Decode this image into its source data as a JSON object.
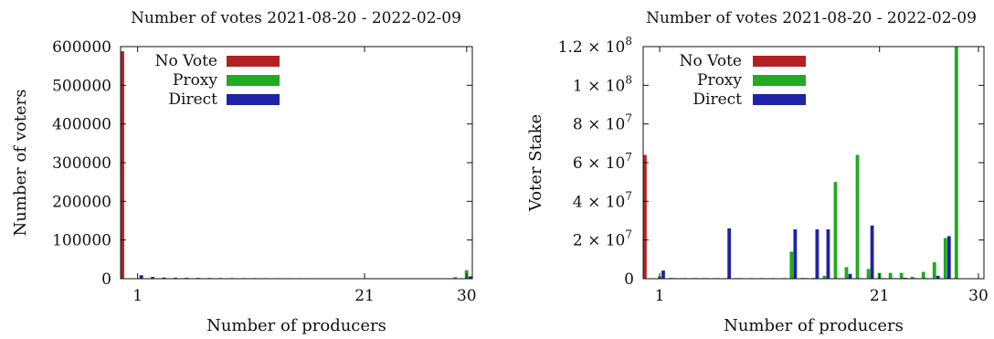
{
  "chart_data": [
    {
      "type": "bar",
      "title": "Number of votes 2021-08-20 - 2022-02-09",
      "xlabel": "Number of producers",
      "ylabel": "Number of voters",
      "xlim": [
        0,
        30
      ],
      "ylim": [
        0,
        600000
      ],
      "x_ticks": [
        1,
        21,
        30
      ],
      "y_ticks": [
        {
          "value": 0,
          "label": "0"
        },
        {
          "value": 100000,
          "label": "100000"
        },
        {
          "value": 200000,
          "label": "200000"
        },
        {
          "value": 300000,
          "label": "300000"
        },
        {
          "value": 400000,
          "label": "400000"
        },
        {
          "value": 500000,
          "label": "500000"
        },
        {
          "value": 600000,
          "label": "600000"
        }
      ],
      "legend_position": "top-left",
      "series": [
        {
          "name": "No Vote",
          "color": "#b22222",
          "points": [
            [
              0,
              588000
            ]
          ]
        },
        {
          "name": "Proxy",
          "color": "#22aa22",
          "points": [
            [
              1,
              600
            ],
            [
              2,
              400
            ],
            [
              29,
              4000
            ],
            [
              30,
              22000
            ]
          ]
        },
        {
          "name": "Direct",
          "color": "#1f23a8",
          "points": [
            [
              1,
              9000
            ],
            [
              2,
              4500
            ],
            [
              3,
              3000
            ],
            [
              4,
              2500
            ],
            [
              5,
              2200
            ],
            [
              6,
              2000
            ],
            [
              7,
              1800
            ],
            [
              8,
              1700
            ],
            [
              9,
              1600
            ],
            [
              10,
              1500
            ],
            [
              11,
              1500
            ],
            [
              12,
              1400
            ],
            [
              13,
              1400
            ],
            [
              14,
              1300
            ],
            [
              15,
              1300
            ],
            [
              16,
              1300
            ],
            [
              17,
              1200
            ],
            [
              18,
              1200
            ],
            [
              19,
              1200
            ],
            [
              20,
              1200
            ],
            [
              21,
              1200
            ],
            [
              22,
              1100
            ],
            [
              23,
              1100
            ],
            [
              24,
              1100
            ],
            [
              25,
              1100
            ],
            [
              26,
              1000
            ],
            [
              27,
              1000
            ],
            [
              28,
              1000
            ],
            [
              29,
              1200
            ],
            [
              30,
              6000
            ]
          ]
        }
      ]
    },
    {
      "type": "bar",
      "title": "Number of votes 2021-08-20 - 2022-02-09",
      "xlabel": "Number of producers",
      "ylabel": "Voter Stake",
      "xlim": [
        0,
        30
      ],
      "ylim": [
        0,
        120000000
      ],
      "x_ticks": [
        1,
        21,
        30
      ],
      "y_ticks": [
        {
          "value": 0,
          "mant": "0",
          "exp": ""
        },
        {
          "value": 20000000,
          "mant": "2 × 10",
          "exp": "7"
        },
        {
          "value": 40000000,
          "mant": "4 × 10",
          "exp": "7"
        },
        {
          "value": 60000000,
          "mant": "6 × 10",
          "exp": "7"
        },
        {
          "value": 80000000,
          "mant": "8 × 10",
          "exp": "7"
        },
        {
          "value": 100000000,
          "mant": "1 × 10",
          "exp": "8"
        },
        {
          "value": 120000000,
          "mant": "1.2 × 10",
          "exp": "8"
        }
      ],
      "legend_position": "top-left",
      "series": [
        {
          "name": "No Vote",
          "color": "#b22222",
          "points": [
            [
              0,
              64000000
            ]
          ]
        },
        {
          "name": "Proxy",
          "color": "#22aa22",
          "points": [
            [
              1,
              1200000
            ],
            [
              2,
              400000
            ],
            [
              3,
              300000
            ],
            [
              4,
              300000
            ],
            [
              5,
              300000
            ],
            [
              6,
              300000
            ],
            [
              7,
              300000
            ],
            [
              8,
              300000
            ],
            [
              13,
              14000000
            ],
            [
              14,
              400000
            ],
            [
              15,
              400000
            ],
            [
              16,
              1500000
            ],
            [
              17,
              50000000
            ],
            [
              18,
              6000000
            ],
            [
              19,
              64000000
            ],
            [
              20,
              5000000
            ],
            [
              21,
              3000000
            ],
            [
              22,
              3000000
            ],
            [
              23,
              3000000
            ],
            [
              24,
              1000000
            ],
            [
              25,
              3500000
            ],
            [
              26,
              8500000
            ],
            [
              27,
              21000000
            ],
            [
              28,
              120000000
            ]
          ]
        },
        {
          "name": "Direct",
          "color": "#1f23a8",
          "points": [
            [
              1,
              4200000
            ],
            [
              2,
              300000
            ],
            [
              3,
              300000
            ],
            [
              4,
              300000
            ],
            [
              5,
              300000
            ],
            [
              6,
              300000
            ],
            [
              7,
              26000000
            ],
            [
              8,
              300000
            ],
            [
              9,
              300000
            ],
            [
              10,
              300000
            ],
            [
              11,
              300000
            ],
            [
              12,
              300000
            ],
            [
              13,
              25500000
            ],
            [
              14,
              300000
            ],
            [
              15,
              25500000
            ],
            [
              16,
              25500000
            ],
            [
              17,
              300000
            ],
            [
              18,
              2500000
            ],
            [
              19,
              300000
            ],
            [
              20,
              27500000
            ],
            [
              21,
              300000
            ],
            [
              22,
              300000
            ],
            [
              23,
              500000
            ],
            [
              24,
              300000
            ],
            [
              25,
              300000
            ],
            [
              26,
              1500000
            ],
            [
              27,
              22000000
            ]
          ]
        }
      ]
    }
  ]
}
